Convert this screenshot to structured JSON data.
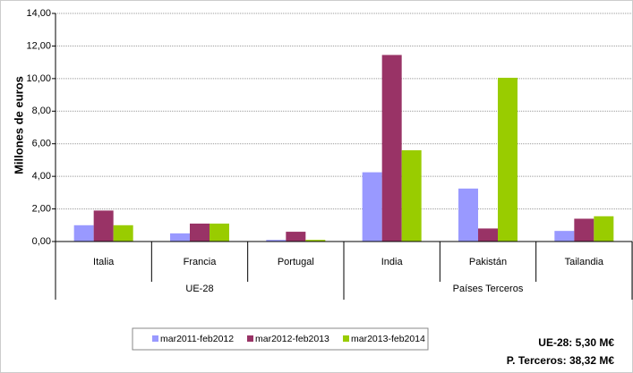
{
  "chart_data": {
    "type": "bar",
    "ylabel": "Millones de euros",
    "groups": [
      {
        "name": "UE-28",
        "categories": [
          "Italia",
          "Francia",
          "Portugal"
        ]
      },
      {
        "name": "Países Terceros",
        "categories": [
          "India",
          "Pakistán",
          "Tailandia"
        ]
      }
    ],
    "series": [
      {
        "name": "mar2011-feb2012",
        "color": "#9999ff",
        "values": [
          1.0,
          0.5,
          0.1,
          4.25,
          3.25,
          0.65
        ]
      },
      {
        "name": "mar2012-feb2013",
        "color": "#993366",
        "values": [
          1.9,
          1.1,
          0.6,
          11.45,
          0.8,
          1.4
        ]
      },
      {
        "name": "mar2013-feb2014",
        "color": "#99cc00",
        "values": [
          1.0,
          1.1,
          0.1,
          5.6,
          10.05,
          1.55
        ]
      }
    ],
    "ylim": [
      0,
      14
    ],
    "yticks": [
      {
        "value": 0,
        "label": "0,00"
      },
      {
        "value": 2,
        "label": "2,00"
      },
      {
        "value": 4,
        "label": "4,00"
      },
      {
        "value": 6,
        "label": "6,00"
      },
      {
        "value": 8,
        "label": "8,00"
      },
      {
        "value": 10,
        "label": "10,00"
      },
      {
        "value": 12,
        "label": "12,00"
      },
      {
        "value": 14,
        "label": "14,00"
      }
    ],
    "grid": true,
    "annotations": [
      "UE-28: 5,30 M€",
      "P. Terceros: 38,32 M€"
    ]
  }
}
